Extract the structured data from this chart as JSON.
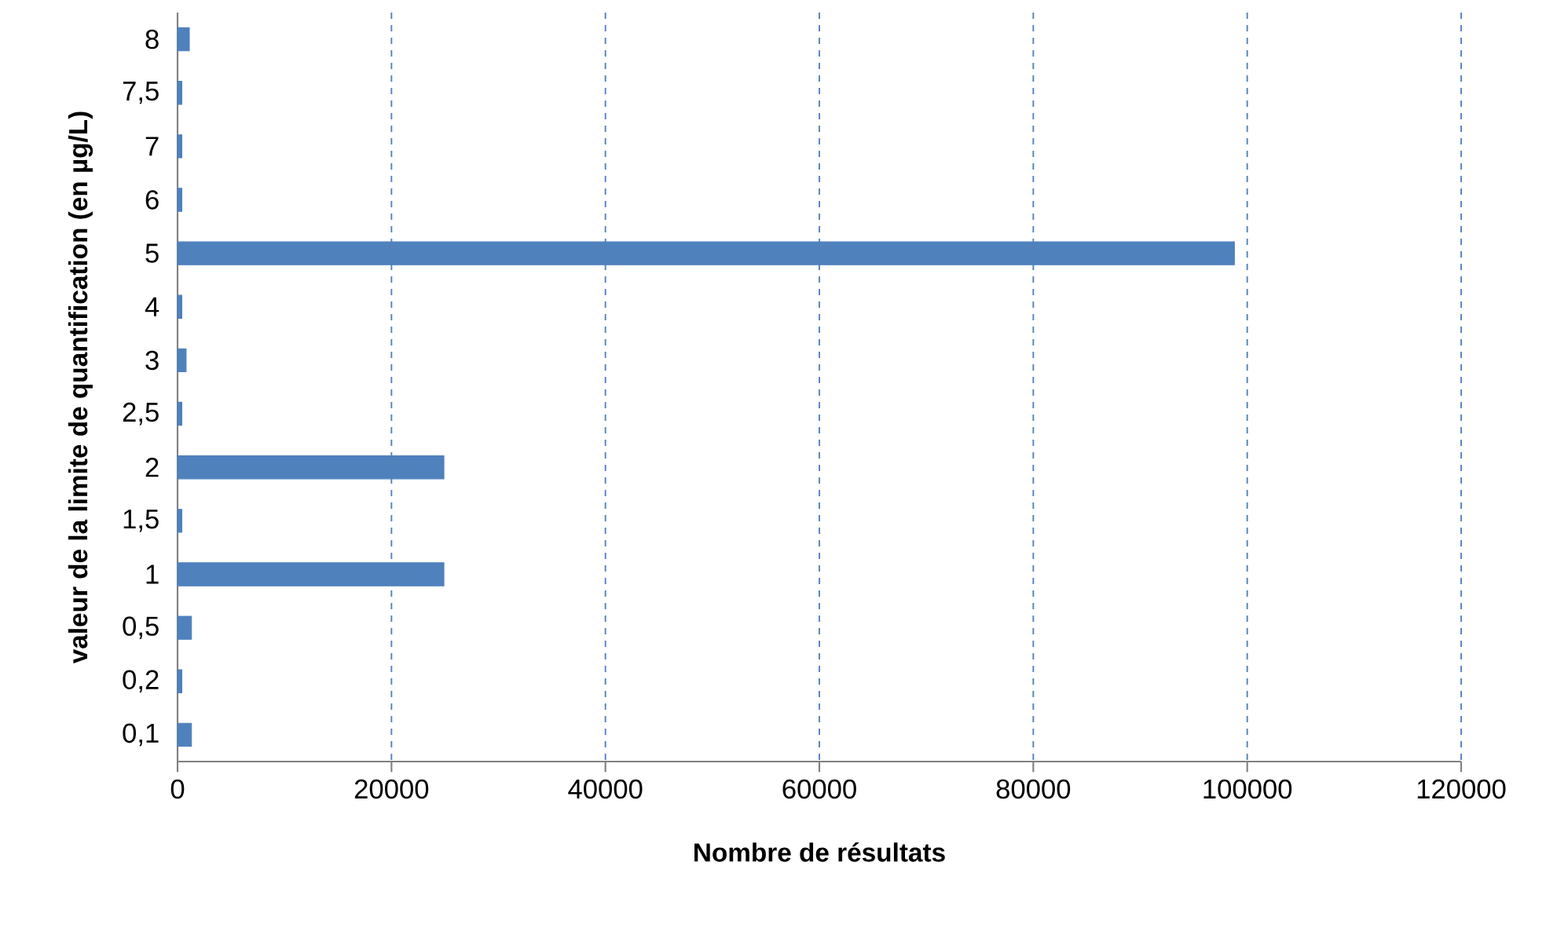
{
  "chart_data": {
    "type": "bar",
    "orientation": "horizontal",
    "xlabel": "Nombre de résultats",
    "ylabel": "valeur de la limite de quantification (en µg/L)",
    "categories": [
      "8",
      "7,5",
      "7",
      "6",
      "5",
      "4",
      "3",
      "2,5",
      "2",
      "1,5",
      "1",
      "0,5",
      "0,2",
      "0,1"
    ],
    "values": [
      1100,
      400,
      400,
      400,
      98800,
      400,
      800,
      400,
      24900,
      400,
      24900,
      1300,
      400,
      1300
    ],
    "color": "#4f81bd",
    "xlim": [
      0,
      120000
    ],
    "xticks": [
      0,
      20000,
      40000,
      60000,
      80000,
      100000,
      120000
    ],
    "grid": "x"
  }
}
